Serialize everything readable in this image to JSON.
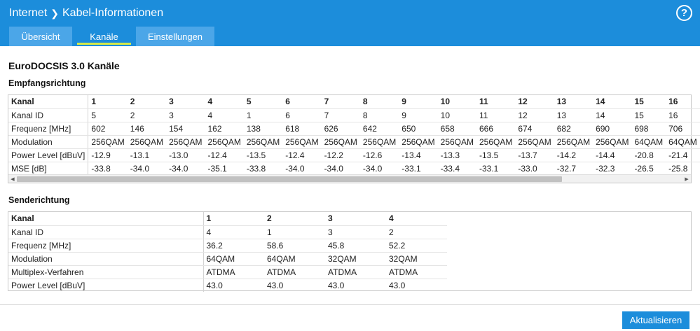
{
  "header": {
    "breadcrumb": [
      "Internet",
      "Kabel-Informationen"
    ],
    "help_label": "?"
  },
  "tabs": [
    {
      "label": "Übersicht"
    },
    {
      "label": "Kanäle"
    },
    {
      "label": "Einstellungen"
    }
  ],
  "page_title": "EuroDOCSIS 3.0 Kanäle",
  "downstream": {
    "title": "Empfangsrichtung",
    "rows": [
      {
        "label": "Kanal",
        "values": [
          "1",
          "2",
          "3",
          "4",
          "5",
          "6",
          "7",
          "8",
          "9",
          "10",
          "11",
          "12",
          "13",
          "14",
          "15",
          "16"
        ]
      },
      {
        "label": "Kanal ID",
        "values": [
          "5",
          "2",
          "3",
          "4",
          "1",
          "6",
          "7",
          "8",
          "9",
          "10",
          "11",
          "12",
          "13",
          "14",
          "15",
          "16"
        ]
      },
      {
        "label": "Frequenz [MHz]",
        "values": [
          "602",
          "146",
          "154",
          "162",
          "138",
          "618",
          "626",
          "642",
          "650",
          "658",
          "666",
          "674",
          "682",
          "690",
          "698",
          "706"
        ]
      },
      {
        "label": "Modulation",
        "values": [
          "256QAM",
          "256QAM",
          "256QAM",
          "256QAM",
          "256QAM",
          "256QAM",
          "256QAM",
          "256QAM",
          "256QAM",
          "256QAM",
          "256QAM",
          "256QAM",
          "256QAM",
          "256QAM",
          "64QAM",
          "64QAM"
        ]
      },
      {
        "label": "Power Level [dBuV]",
        "values": [
          "-12.9",
          "-13.1",
          "-13.0",
          "-12.4",
          "-13.5",
          "-12.4",
          "-12.2",
          "-12.6",
          "-13.4",
          "-13.3",
          "-13.5",
          "-13.7",
          "-14.2",
          "-14.4",
          "-20.8",
          "-21.4"
        ]
      },
      {
        "label": "MSE [dB]",
        "values": [
          "-33.8",
          "-34.0",
          "-34.0",
          "-35.1",
          "-33.8",
          "-34.0",
          "-34.0",
          "-34.0",
          "-33.1",
          "-33.4",
          "-33.1",
          "-33.0",
          "-32.7",
          "-32.3",
          "-26.5",
          "-25.8"
        ]
      }
    ]
  },
  "upstream": {
    "title": "Senderichtung",
    "rows": [
      {
        "label": "Kanal",
        "values": [
          "1",
          "2",
          "3",
          "4"
        ]
      },
      {
        "label": "Kanal ID",
        "values": [
          "4",
          "1",
          "3",
          "2"
        ]
      },
      {
        "label": "Frequenz [MHz]",
        "values": [
          "36.2",
          "58.6",
          "45.8",
          "52.2"
        ]
      },
      {
        "label": "Modulation",
        "values": [
          "64QAM",
          "64QAM",
          "32QAM",
          "32QAM"
        ]
      },
      {
        "label": "Multiplex-Verfahren",
        "values": [
          "ATDMA",
          "ATDMA",
          "ATDMA",
          "ATDMA"
        ]
      },
      {
        "label": "Power Level [dBuV]",
        "values": [
          "43.0",
          "43.0",
          "43.0",
          "43.0"
        ]
      }
    ]
  },
  "refresh_label": "Aktualisieren",
  "colors": {
    "brand": "#1c8ddb",
    "tab_inactive": "#4ba6e8",
    "tab_underline": "#d4e94a"
  }
}
